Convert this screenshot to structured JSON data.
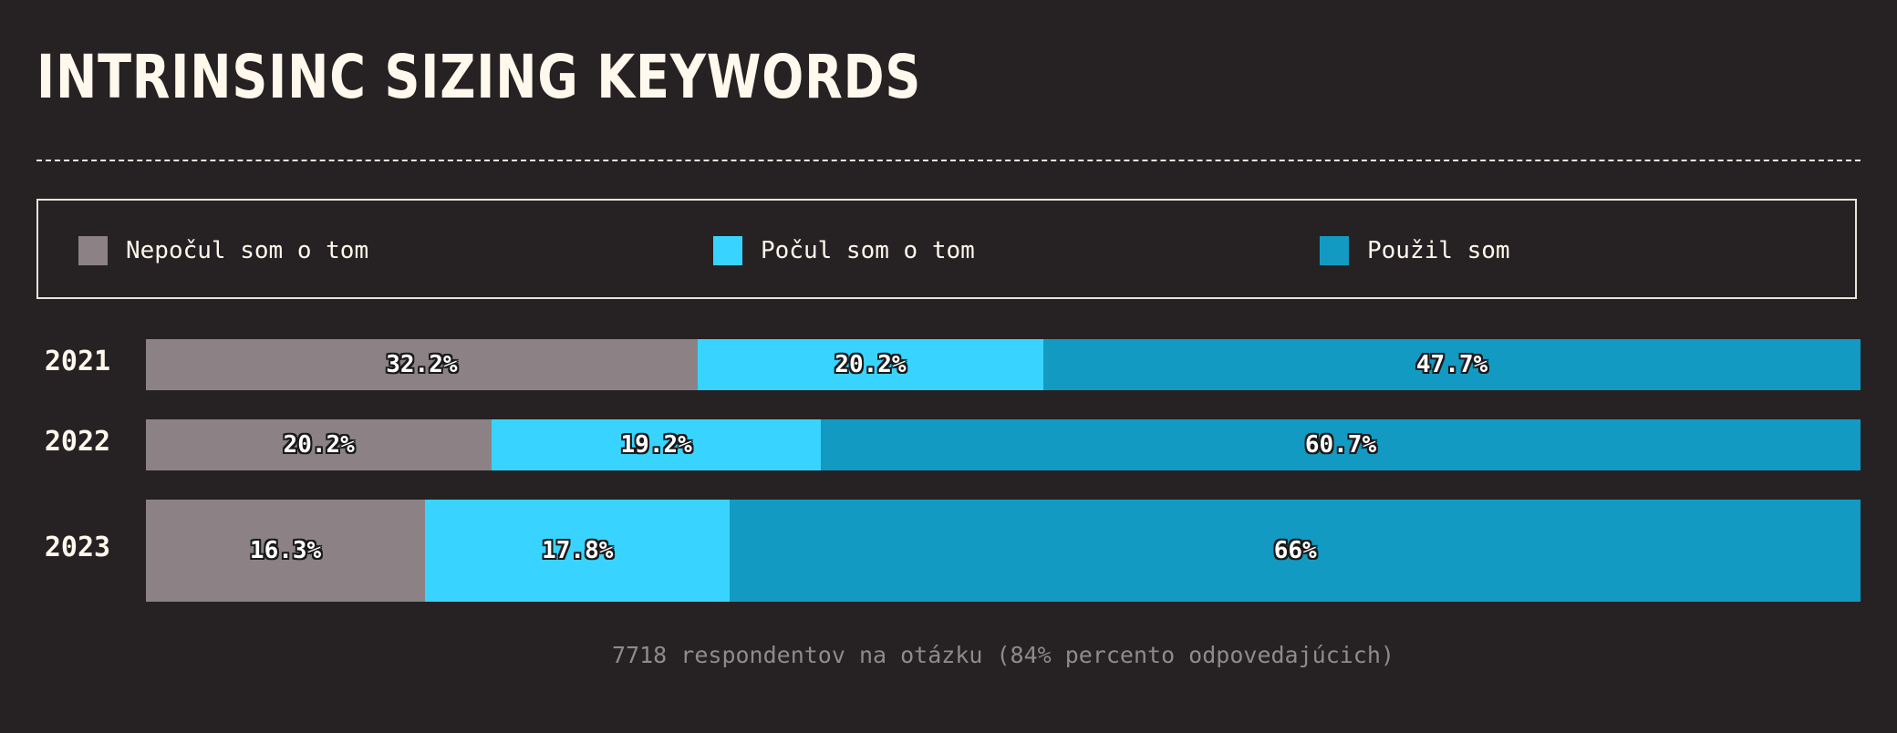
{
  "title": "INTRINSINC SIZING KEYWORDS",
  "footnote": "7718 respondentov na otázku (84% percento odpovedajúcich)",
  "colors": {
    "background": "#262224",
    "not_heard": "#8c8286",
    "heard": "#38d4ff",
    "used": "#139ac2"
  },
  "chart_data": {
    "type": "bar",
    "orientation": "horizontal",
    "stacked": true,
    "normalized": true,
    "legend_position": "top",
    "categories": [
      "2021",
      "2022",
      "2023"
    ],
    "series": [
      {
        "name": "Nepočul som o tom",
        "color": "#8c8286",
        "values": [
          32.2,
          20.2,
          16.3
        ],
        "labels": [
          "32.2%",
          "20.2%",
          "16.3%"
        ]
      },
      {
        "name": "Počul som o tom",
        "color": "#38d4ff",
        "values": [
          20.2,
          19.2,
          17.8
        ],
        "labels": [
          "20.2%",
          "19.2%",
          "17.8%"
        ]
      },
      {
        "name": "Použil som",
        "color": "#139ac2",
        "values": [
          47.7,
          60.7,
          66
        ],
        "labels": [
          "47.7%",
          "60.7%",
          "66%"
        ]
      }
    ],
    "xlim": [
      0,
      100
    ]
  }
}
